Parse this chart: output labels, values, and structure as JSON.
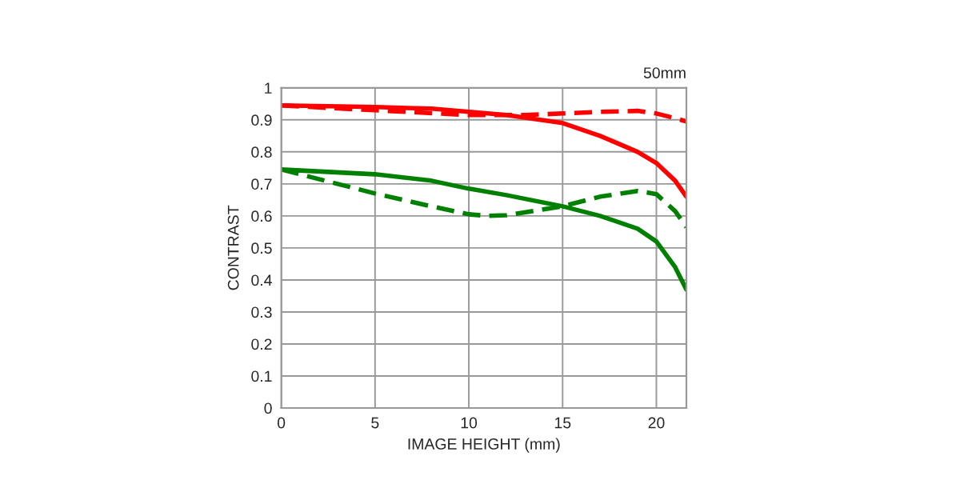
{
  "chart_data": {
    "type": "line",
    "xlabel": "IMAGE HEIGHT (mm)",
    "ylabel": "CONTRAST",
    "annotations": [
      "50mm"
    ],
    "xlim": [
      0,
      21.6
    ],
    "xticks": [
      0,
      5,
      10,
      15,
      20
    ],
    "ylim": [
      0,
      1
    ],
    "yticks": [
      0,
      0.1,
      0.2,
      0.3,
      0.4,
      0.5,
      0.6,
      0.7,
      0.8,
      0.9,
      1
    ],
    "grid": true,
    "marker": "none",
    "series": [
      {
        "color": "#ff0000",
        "line_style": "solid",
        "x": [
          0,
          5,
          8,
          10,
          12,
          15,
          17,
          19,
          20,
          21,
          21.6
        ],
        "values": [
          0.945,
          0.94,
          0.935,
          0.925,
          0.915,
          0.89,
          0.85,
          0.8,
          0.765,
          0.71,
          0.66
        ]
      },
      {
        "color": "#ff0000",
        "line_style": "dashed",
        "x": [
          0,
          5,
          10,
          13,
          15,
          17,
          19,
          20,
          21,
          21.6
        ],
        "values": [
          0.945,
          0.93,
          0.915,
          0.915,
          0.92,
          0.925,
          0.928,
          0.92,
          0.905,
          0.895
        ]
      },
      {
        "color": "#008000",
        "line_style": "solid",
        "x": [
          0,
          5,
          8,
          10,
          12,
          15,
          17,
          19,
          20,
          21,
          21.6
        ],
        "values": [
          0.745,
          0.73,
          0.71,
          0.685,
          0.665,
          0.63,
          0.6,
          0.56,
          0.52,
          0.44,
          0.37
        ]
      },
      {
        "color": "#008000",
        "line_style": "dashed",
        "x": [
          0,
          3,
          5,
          8,
          10,
          11,
          12,
          15,
          17,
          19,
          20,
          21,
          21.6
        ],
        "values": [
          0.745,
          0.7,
          0.67,
          0.63,
          0.605,
          0.6,
          0.602,
          0.63,
          0.66,
          0.678,
          0.668,
          0.615,
          0.565
        ]
      }
    ]
  }
}
